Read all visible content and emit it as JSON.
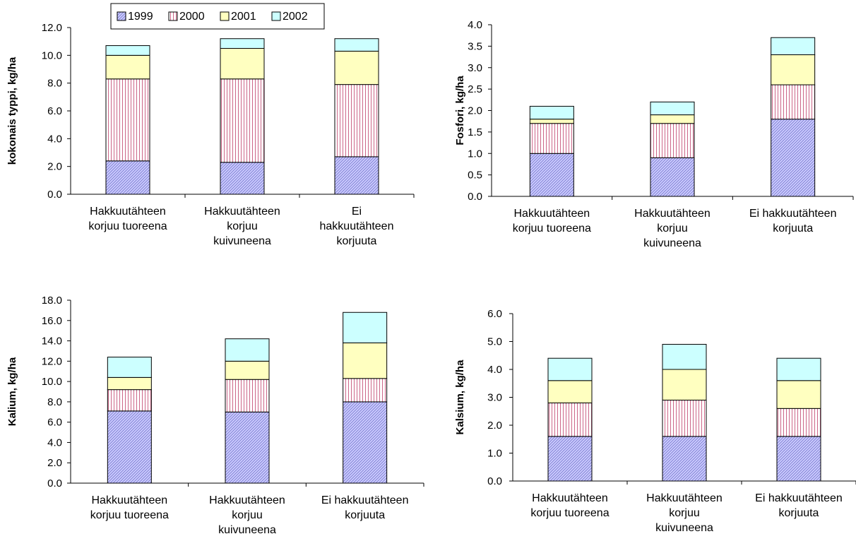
{
  "legend": {
    "entries": [
      {
        "name": "1999",
        "color": "#ccccff",
        "hatch": "diag"
      },
      {
        "name": "2000",
        "color": "#cc6688",
        "hatch": "vert"
      },
      {
        "name": "2001",
        "color": "#ffffc0",
        "hatch": "none"
      },
      {
        "name": "2002",
        "color": "#ccffff",
        "hatch": "none"
      }
    ]
  },
  "chart_data": [
    {
      "type": "bar",
      "stacked": true,
      "ylabel": "kokonais typpi, kg/ha",
      "ylim": [
        0,
        12
      ],
      "yticks": [
        "0.0",
        "2.0",
        "4.0",
        "6.0",
        "8.0",
        "10.0",
        "12.0"
      ],
      "categories": [
        [
          "Hakkuutähteen",
          "korjuu tuoreena"
        ],
        [
          "Hakkuutähteen",
          "korjuu",
          "kuivuneena"
        ],
        [
          "Ei",
          "hakkuutähteen",
          "korjuuta"
        ]
      ],
      "series": [
        {
          "name": "1999",
          "values": [
            2.4,
            2.3,
            2.7
          ]
        },
        {
          "name": "2000",
          "values": [
            5.9,
            6.0,
            5.2
          ]
        },
        {
          "name": "2001",
          "values": [
            1.7,
            2.2,
            2.4
          ]
        },
        {
          "name": "2002",
          "values": [
            0.7,
            0.7,
            0.9
          ]
        }
      ]
    },
    {
      "type": "bar",
      "stacked": true,
      "ylabel": "Fosfori, kg/ha",
      "ylim": [
        0,
        4
      ],
      "yticks": [
        "0.0",
        "0.5",
        "1.0",
        "1.5",
        "2.0",
        "2.5",
        "3.0",
        "3.5",
        "4.0"
      ],
      "categories": [
        [
          "Hakkuutähteen",
          "korjuu tuoreena"
        ],
        [
          "Hakkuutähteen",
          "korjuu",
          "kuivuneena"
        ],
        [
          "Ei hakkuutähteen",
          "korjuuta"
        ]
      ],
      "series": [
        {
          "name": "1999",
          "values": [
            1.0,
            0.9,
            1.8
          ]
        },
        {
          "name": "2000",
          "values": [
            0.7,
            0.8,
            0.8
          ]
        },
        {
          "name": "2001",
          "values": [
            0.1,
            0.2,
            0.7
          ]
        },
        {
          "name": "2002",
          "values": [
            0.3,
            0.3,
            0.4
          ]
        }
      ]
    },
    {
      "type": "bar",
      "stacked": true,
      "ylabel": "Kalium, kg/ha",
      "ylim": [
        0,
        18
      ],
      "yticks": [
        "0.0",
        "2.0",
        "4.0",
        "6.0",
        "8.0",
        "10.0",
        "12.0",
        "14.0",
        "16.0",
        "18.0"
      ],
      "categories": [
        [
          "Hakkuutähteen",
          "korjuu tuoreena"
        ],
        [
          "Hakkuutähteen",
          "korjuu",
          "kuivuneena"
        ],
        [
          "Ei hakkuutähteen",
          "korjuuta"
        ]
      ],
      "series": [
        {
          "name": "1999",
          "values": [
            7.1,
            7.0,
            8.0
          ]
        },
        {
          "name": "2000",
          "values": [
            2.1,
            3.2,
            2.3
          ]
        },
        {
          "name": "2001",
          "values": [
            1.2,
            1.8,
            3.5
          ]
        },
        {
          "name": "2002",
          "values": [
            2.0,
            2.2,
            3.0
          ]
        }
      ]
    },
    {
      "type": "bar",
      "stacked": true,
      "ylabel": "Kalsium, kg/ha",
      "ylim": [
        0,
        6
      ],
      "yticks": [
        "0.0",
        "1.0",
        "2.0",
        "3.0",
        "4.0",
        "5.0",
        "6.0"
      ],
      "categories": [
        [
          "Hakkuutähteen",
          "korjuu tuoreena"
        ],
        [
          "Hakkuutähteen",
          "korjuu",
          "kuivuneena"
        ],
        [
          "Ei hakkuutähteen",
          "korjuuta"
        ]
      ],
      "series": [
        {
          "name": "1999",
          "values": [
            1.6,
            1.6,
            1.6
          ]
        },
        {
          "name": "2000",
          "values": [
            1.2,
            1.3,
            1.0
          ]
        },
        {
          "name": "2001",
          "values": [
            0.8,
            1.1,
            1.0
          ]
        },
        {
          "name": "2002",
          "values": [
            0.8,
            0.9,
            0.8
          ]
        }
      ]
    }
  ]
}
